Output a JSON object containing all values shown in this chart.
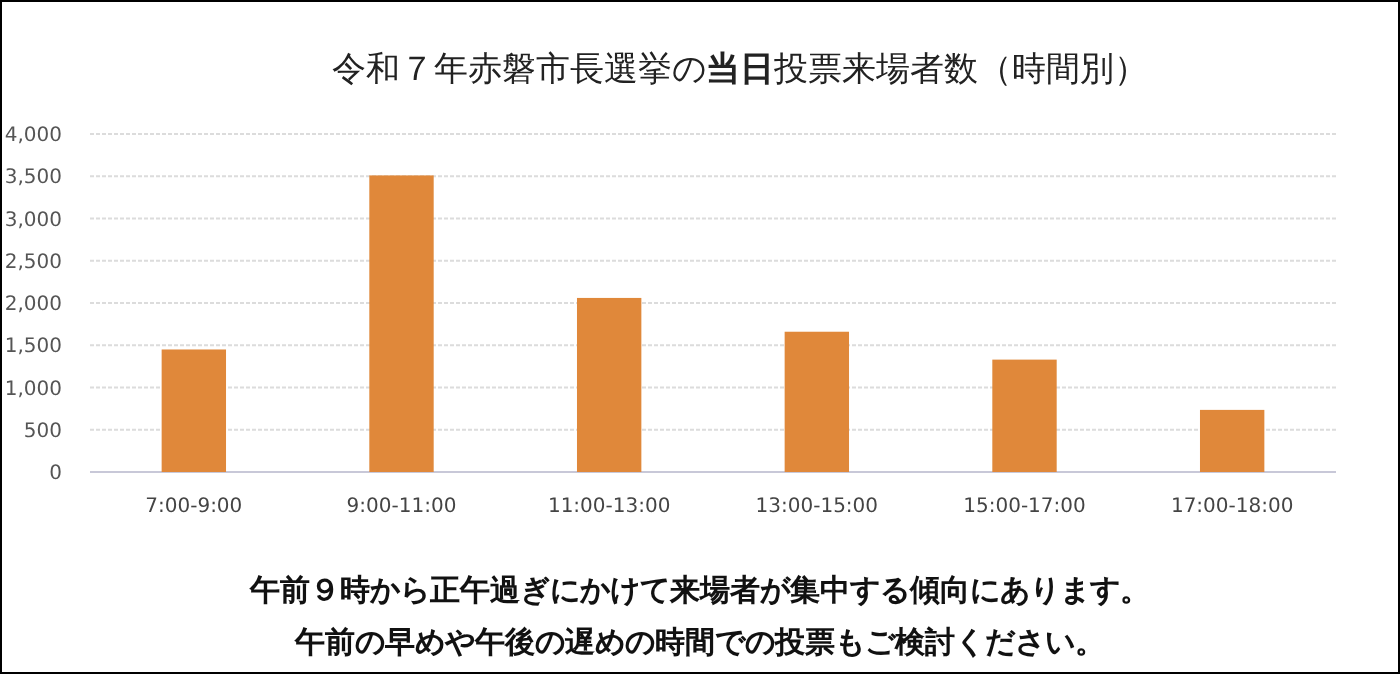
{
  "chart_data": {
    "type": "bar",
    "title": "令和７年赤磐市長選挙の**当日**投票来場者数（時間別）",
    "categories": [
      "7:00-9:00",
      "9:00-11:00",
      "11:00-13:00",
      "13:00-15:00",
      "15:00-17:00",
      "17:00-18:00"
    ],
    "values": [
      1450,
      3510,
      2060,
      1660,
      1330,
      735
    ],
    "color": "#e0883a",
    "ylim": [
      0,
      4000
    ],
    "yticks": [
      0,
      500,
      {
        "value": 1000,
        "label": "1,000"
      },
      {
        "value": 1500,
        "label": "1,500"
      },
      {
        "value": 2000,
        "label": "2,000"
      },
      {
        "value": 2500,
        "label": "2,500"
      },
      {
        "value": 3000,
        "label": "3,000"
      },
      {
        "value": 3500,
        "label": "3,500"
      },
      {
        "value": 4000,
        "label": "4,000"
      }
    ],
    "grid": "y",
    "annotations": [
      "午前９時から正午過ぎにかけて来場者が集中する傾向にあります。",
      "午前の早めや午後の遅めの時間での投票もご検討ください。"
    ]
  }
}
